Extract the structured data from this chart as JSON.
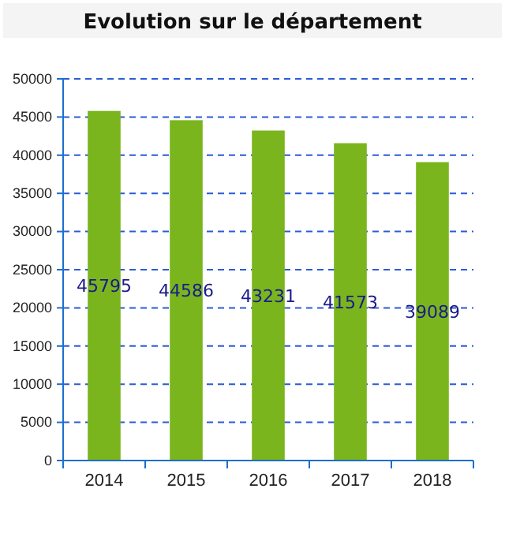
{
  "chart_data": {
    "type": "bar",
    "title": "Evolution sur le département",
    "categories": [
      "2014",
      "2015",
      "2016",
      "2017",
      "2018"
    ],
    "values": [
      45795,
      44586,
      43231,
      41573,
      39089
    ],
    "color": "#7ab51d",
    "ylim": [
      0,
      50000
    ],
    "yticks": [
      0,
      5000,
      10000,
      15000,
      20000,
      25000,
      30000,
      35000,
      40000,
      45000,
      50000
    ],
    "grid": "y",
    "data_labels": true
  }
}
